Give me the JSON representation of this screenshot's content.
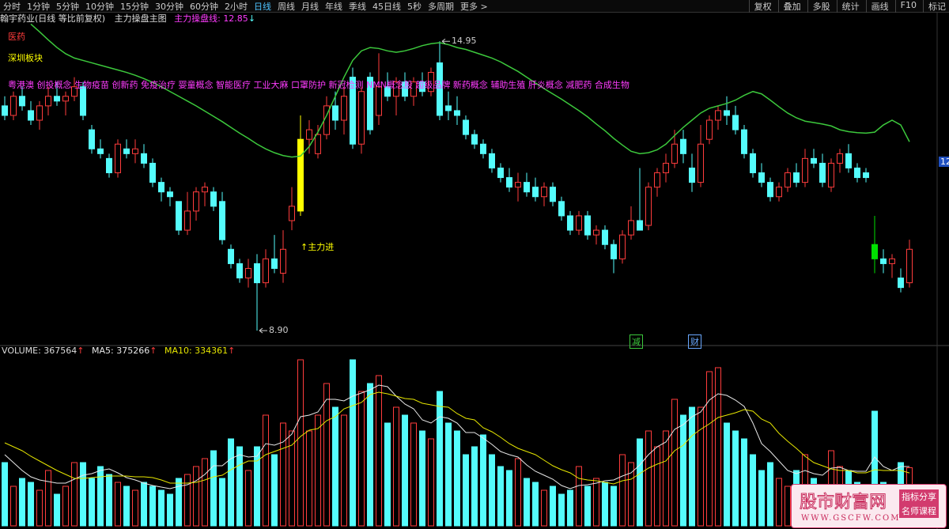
{
  "toolbar": {
    "left": [
      "分时",
      "1分钟",
      "5分钟",
      "10分钟",
      "15分钟",
      "30分钟",
      "60分钟",
      "2小时",
      "日线",
      "周线",
      "月线",
      "年线",
      "季线",
      "45日线",
      "5秒",
      "多周期",
      "更多 >"
    ],
    "right": [
      "复权",
      "叠加",
      "多股",
      "统计",
      "画线",
      "F10",
      "标记"
    ],
    "active": "日线"
  },
  "header": {
    "stock": "翰宇药业(日线 等比前复权)",
    "indicator": "主力操盘主图",
    "value": 12.85,
    "arrow": "↓"
  },
  "labels": {
    "sector": "医药",
    "board": "深圳板块",
    "concepts": "粤港澳 创投概念 生物疫苗 创新药 免疫治疗 婴童概念 智能医疗 工业大麻 口罩防护 新冠检测 NMN概念股 超级品牌 新药概念 辅助生殖 肝炎概念 减肥药 合成生物",
    "price_tag": "12"
  },
  "chart_data": [
    {
      "type": "candlestick",
      "ylim": [
        8.62,
        15.45
      ],
      "up_color": "#ff3c3c",
      "down_color": "#54fcfc",
      "open": [
        13.6,
        13.4,
        13.8,
        13.5,
        13.3,
        13.6,
        13.8,
        13.7,
        13.8,
        14.0,
        13.1,
        12.7,
        12.5,
        12.2,
        12.7,
        12.6,
        12.6,
        12.4,
        12.0,
        11.8,
        11.6,
        11.0,
        11.4,
        11.8,
        11.8,
        11.6,
        10.6,
        10.3,
        10.0,
        10.3,
        9.9,
        10.4,
        10.1,
        11.2,
        11.4,
        12.9,
        12.6,
        13.0,
        13.6,
        13.3,
        14.2,
        12.8,
        14.2,
        13.4,
        14.0,
        13.8,
        14.1,
        13.8,
        14.1,
        13.9,
        14.5,
        13.6,
        13.5,
        13.3,
        13.0,
        12.8,
        12.6,
        12.3,
        12.1,
        11.9,
        12.0,
        11.9,
        11.7,
        11.9,
        11.6,
        11.3,
        11.0,
        11.3,
        10.9,
        11.0,
        10.7,
        10.4,
        10.9,
        11.2,
        11.1,
        11.9,
        12.2,
        12.4,
        12.9,
        12.3,
        12.0,
        12.9,
        13.3,
        13.5,
        13.4,
        13.1,
        12.6,
        12.2,
        12.0,
        11.7,
        11.9,
        12.2,
        12.0,
        12.5,
        12.4,
        11.9,
        12.4,
        12.6,
        12.3,
        12.2,
        10.7,
        10.4,
        10.3,
        10.0,
        9.9
      ],
      "high": [
        13.8,
        13.9,
        14.0,
        13.7,
        13.7,
        14.0,
        14.1,
        13.9,
        14.2,
        14.1,
        13.2,
        12.9,
        12.6,
        12.9,
        12.9,
        12.9,
        12.8,
        12.5,
        12.1,
        11.9,
        11.6,
        11.8,
        11.9,
        12.0,
        11.9,
        11.8,
        10.7,
        10.4,
        10.4,
        10.5,
        10.6,
        10.9,
        11.0,
        11.9,
        13.4,
        13.3,
        13.2,
        13.8,
        13.9,
        14.0,
        14.4,
        14.0,
        14.3,
        14.7,
        14.3,
        14.2,
        14.3,
        14.2,
        14.3,
        14.4,
        14.95,
        13.9,
        13.8,
        13.4,
        13.1,
        12.9,
        12.7,
        12.4,
        12.3,
        12.2,
        12.2,
        12.1,
        12.0,
        12.0,
        11.7,
        11.4,
        11.4,
        11.4,
        11.1,
        11.1,
        10.8,
        11.0,
        11.5,
        12.3,
        12.0,
        12.3,
        12.6,
        13.1,
        13.1,
        12.6,
        13.2,
        13.4,
        13.6,
        13.8,
        13.6,
        13.2,
        12.7,
        12.4,
        12.1,
        12.0,
        12.3,
        12.4,
        12.7,
        12.7,
        12.6,
        12.5,
        12.7,
        12.8,
        12.4,
        12.3,
        11.3,
        10.6,
        10.5,
        10.2,
        10.8
      ],
      "low": [
        13.3,
        13.3,
        13.5,
        13.2,
        13.1,
        13.4,
        13.6,
        13.4,
        13.7,
        13.3,
        12.6,
        12.5,
        12.1,
        12.1,
        12.5,
        12.4,
        12.3,
        11.9,
        11.6,
        11.5,
        10.9,
        10.9,
        11.2,
        11.5,
        11.4,
        10.7,
        10.2,
        9.9,
        9.8,
        8.9,
        9.8,
        10.1,
        9.9,
        11.0,
        11.3,
        12.6,
        12.5,
        12.9,
        13.1,
        13.0,
        12.7,
        12.6,
        13.0,
        13.2,
        13.7,
        13.4,
        13.7,
        13.6,
        13.8,
        13.8,
        13.3,
        13.3,
        13.2,
        12.9,
        12.7,
        12.5,
        12.2,
        12.0,
        11.8,
        11.6,
        11.7,
        11.6,
        11.5,
        11.5,
        11.2,
        10.9,
        10.9,
        10.8,
        10.7,
        10.6,
        10.1,
        10.3,
        10.8,
        11.0,
        11.0,
        11.7,
        12.0,
        12.3,
        12.4,
        11.8,
        11.9,
        12.8,
        13.1,
        13.2,
        13.0,
        12.5,
        12.1,
        11.9,
        11.6,
        11.6,
        11.8,
        11.9,
        11.9,
        12.3,
        11.9,
        11.8,
        12.2,
        12.2,
        12.0,
        12.0,
        10.1,
        10.1,
        10.0,
        9.7,
        9.8
      ],
      "close": [
        13.4,
        13.8,
        13.6,
        13.3,
        13.6,
        13.8,
        13.7,
        13.8,
        14.0,
        13.4,
        12.7,
        12.6,
        12.2,
        12.8,
        12.6,
        12.7,
        12.4,
        12.0,
        11.8,
        11.7,
        11.0,
        11.4,
        11.8,
        11.9,
        11.5,
        10.8,
        10.3,
        10.0,
        10.2,
        9.9,
        10.4,
        10.2,
        10.6,
        11.5,
        12.9,
        13.1,
        13.0,
        13.6,
        13.3,
        13.8,
        12.8,
        13.9,
        13.1,
        14.0,
        13.8,
        14.1,
        13.8,
        14.1,
        13.9,
        14.3,
        13.4,
        13.5,
        13.4,
        13.0,
        12.8,
        12.6,
        12.3,
        12.1,
        11.9,
        12.0,
        11.8,
        11.7,
        11.9,
        11.6,
        11.3,
        11.0,
        11.3,
        10.9,
        11.0,
        10.7,
        10.4,
        10.9,
        11.2,
        11.0,
        11.9,
        12.2,
        12.4,
        12.8,
        12.6,
        12.0,
        12.8,
        13.3,
        13.5,
        13.4,
        13.1,
        12.6,
        12.2,
        12.0,
        11.7,
        11.9,
        12.2,
        12.0,
        12.5,
        12.4,
        12.0,
        12.4,
        12.6,
        12.3,
        12.1,
        12.1,
        10.4,
        10.3,
        10.4,
        9.8,
        10.6
      ],
      "highlights": [
        {
          "index": 34,
          "color": "#ffff00"
        },
        {
          "index": 100,
          "color": "#00e000"
        }
      ],
      "high_mark": 14.95,
      "low_mark": {
        "value": 8.9,
        "label": "8.90"
      },
      "signal": {
        "text": "↑主力进",
        "color": "#ffff00"
      },
      "series": [
        {
          "name": "主力操盘线:",
          "color": "#3cc83c",
          "values": [
            null,
            null,
            null,
            15.31,
            15.15,
            14.98,
            14.82,
            14.69,
            14.6,
            14.55,
            14.5,
            14.45,
            14.4,
            14.35,
            14.3,
            14.24,
            14.17,
            14.09,
            14.0,
            13.9,
            13.8,
            13.7,
            13.6,
            13.49,
            13.38,
            13.27,
            13.15,
            13.03,
            12.92,
            12.8,
            12.7,
            12.62,
            12.56,
            12.53,
            12.55,
            12.75,
            13.05,
            13.4,
            13.8,
            14.2,
            14.55,
            14.75,
            14.82,
            14.8,
            14.75,
            14.72,
            14.75,
            14.8,
            14.86,
            14.9,
            14.92,
            14.88,
            14.82,
            14.78,
            14.72,
            14.66,
            14.6,
            14.52,
            14.42,
            14.32,
            14.2,
            14.08,
            13.96,
            13.85,
            13.74,
            13.62,
            13.5,
            13.37,
            13.22,
            13.08,
            12.92,
            12.78,
            12.65,
            12.6,
            12.62,
            12.68,
            12.8,
            12.98,
            13.15,
            13.3,
            13.45,
            13.55,
            13.6,
            13.65,
            13.72,
            13.82,
            13.9,
            13.85,
            13.72,
            13.58,
            13.45,
            13.35,
            13.28,
            13.25,
            13.22,
            13.18,
            13.1,
            13.06,
            13.04,
            13.03,
            13.05,
            13.2,
            13.3,
            13.2,
            12.85
          ]
        }
      ]
    },
    {
      "type": "volume",
      "title": "VOLUME:",
      "value": 367564,
      "arrow": "↑",
      "ylim": [
        0,
        1075000
      ],
      "up_color": "#ff3c3c",
      "down_color": "#54fcfc",
      "values": [
        400000,
        250000,
        300000,
        275000,
        225000,
        350000,
        200000,
        250000,
        400000,
        400000,
        300000,
        375000,
        325000,
        275000,
        250000,
        225000,
        275000,
        250000,
        225000,
        200000,
        300000,
        325000,
        375000,
        425000,
        475000,
        300000,
        550000,
        500000,
        350000,
        500000,
        700000,
        450000,
        650000,
        600000,
        1050000,
        600000,
        700000,
        900000,
        750000,
        700000,
        1050000,
        850000,
        900000,
        950000,
        650000,
        750000,
        700000,
        650000,
        600000,
        550000,
        850000,
        650000,
        600000,
        450000,
        500000,
        575000,
        450000,
        375000,
        350000,
        425000,
        300000,
        275000,
        225000,
        250000,
        200000,
        225000,
        375000,
        250000,
        300000,
        275000,
        250000,
        450000,
        400000,
        550000,
        600000,
        500000,
        600000,
        800000,
        700000,
        750000,
        750000,
        975000,
        1000000,
        650000,
        600000,
        550000,
        450000,
        350000,
        400000,
        300000,
        250000,
        350000,
        450000,
        300000,
        250000,
        475000,
        375000,
        350000,
        275000,
        250000,
        725000,
        275000,
        225000,
        400000,
        367564
      ],
      "series": [
        {
          "name": "MA5:",
          "value": 375266,
          "arrow": "↑",
          "color": "#e8e8e8",
          "values": [
            450000,
            400000,
            350000,
            310000,
            290000,
            280000,
            270000,
            270000,
            295000,
            320000,
            330000,
            350000,
            360000,
            335000,
            305000,
            290000,
            270000,
            255000,
            245000,
            235000,
            250000,
            260000,
            285000,
            325000,
            380000,
            380000,
            425000,
            450000,
            435000,
            440000,
            520000,
            510000,
            530000,
            580000,
            690000,
            700000,
            720000,
            800000,
            800000,
            790000,
            820000,
            840000,
            860000,
            890000,
            880000,
            820000,
            770000,
            740000,
            670000,
            650000,
            690000,
            680000,
            650000,
            590000,
            590000,
            555000,
            515000,
            470000,
            450000,
            435000,
            385000,
            345000,
            320000,
            295000,
            255000,
            235000,
            255000,
            260000,
            270000,
            285000,
            290000,
            315000,
            335000,
            385000,
            450000,
            500000,
            530000,
            610000,
            640000,
            690000,
            720000,
            795000,
            835000,
            825000,
            795000,
            755000,
            650000,
            520000,
            470000,
            410000,
            350000,
            330000,
            350000,
            330000,
            320000,
            365000,
            370000,
            350000,
            345000,
            345000,
            435000,
            375000,
            350000,
            375000,
            375266
          ]
        },
        {
          "name": "MA10:",
          "value": 334361,
          "arrow": "↑",
          "color": "#e6e600",
          "values": [
            525000,
            500000,
            475000,
            440000,
            410000,
            380000,
            350000,
            325000,
            300000,
            300000,
            305000,
            310000,
            315000,
            315000,
            315000,
            310000,
            310000,
            305000,
            290000,
            270000,
            270000,
            270000,
            275000,
            290000,
            310000,
            320000,
            355000,
            385000,
            410000,
            410000,
            450000,
            470000,
            490000,
            510000,
            565000,
            605000,
            615000,
            665000,
            690000,
            740000,
            760000,
            780000,
            830000,
            845000,
            835000,
            820000,
            805000,
            800000,
            775000,
            765000,
            755000,
            750000,
            710000,
            680000,
            670000,
            620000,
            595000,
            560000,
            520000,
            490000,
            470000,
            450000,
            415000,
            380000,
            355000,
            335000,
            300000,
            290000,
            285000,
            275000,
            265000,
            285000,
            295000,
            330000,
            365000,
            390000,
            410000,
            475000,
            510000,
            570000,
            610000,
            645000,
            685000,
            700000,
            715000,
            735000,
            725000,
            675000,
            650000,
            585000,
            535000,
            490000,
            440000,
            400000,
            380000,
            360000,
            350000,
            350000,
            335000,
            335000,
            355000,
            350000,
            350000,
            350000,
            334361
          ]
        }
      ]
    }
  ],
  "events": [
    {
      "text": "减",
      "color": "#3cc83c"
    },
    {
      "text": "财",
      "color": "#6aa8ff"
    }
  ],
  "watermark": {
    "title": "股市财富网",
    "tag1": "指标分享",
    "tag2": "名师课程",
    "url": "WWW.GSCFW.COM"
  }
}
